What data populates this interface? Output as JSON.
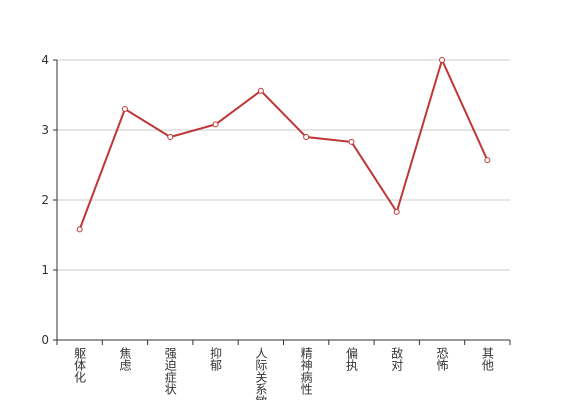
{
  "chart_data": {
    "type": "line",
    "categories": [
      "躯体化",
      "焦虑",
      "强迫症状",
      "抑郁",
      "人际关系敏感",
      "精神病性",
      "偏执",
      "敌对",
      "恐怖",
      "其他"
    ],
    "series": [
      {
        "name": null,
        "color": "#bf3636",
        "values": [
          1.58,
          3.3,
          2.9,
          3.08,
          3.56,
          2.9,
          2.83,
          1.83,
          4.0,
          2.57
        ]
      }
    ],
    "ylim": [
      0,
      4
    ],
    "yticks": [
      0,
      1,
      2,
      3,
      4
    ],
    "grid": true
  }
}
